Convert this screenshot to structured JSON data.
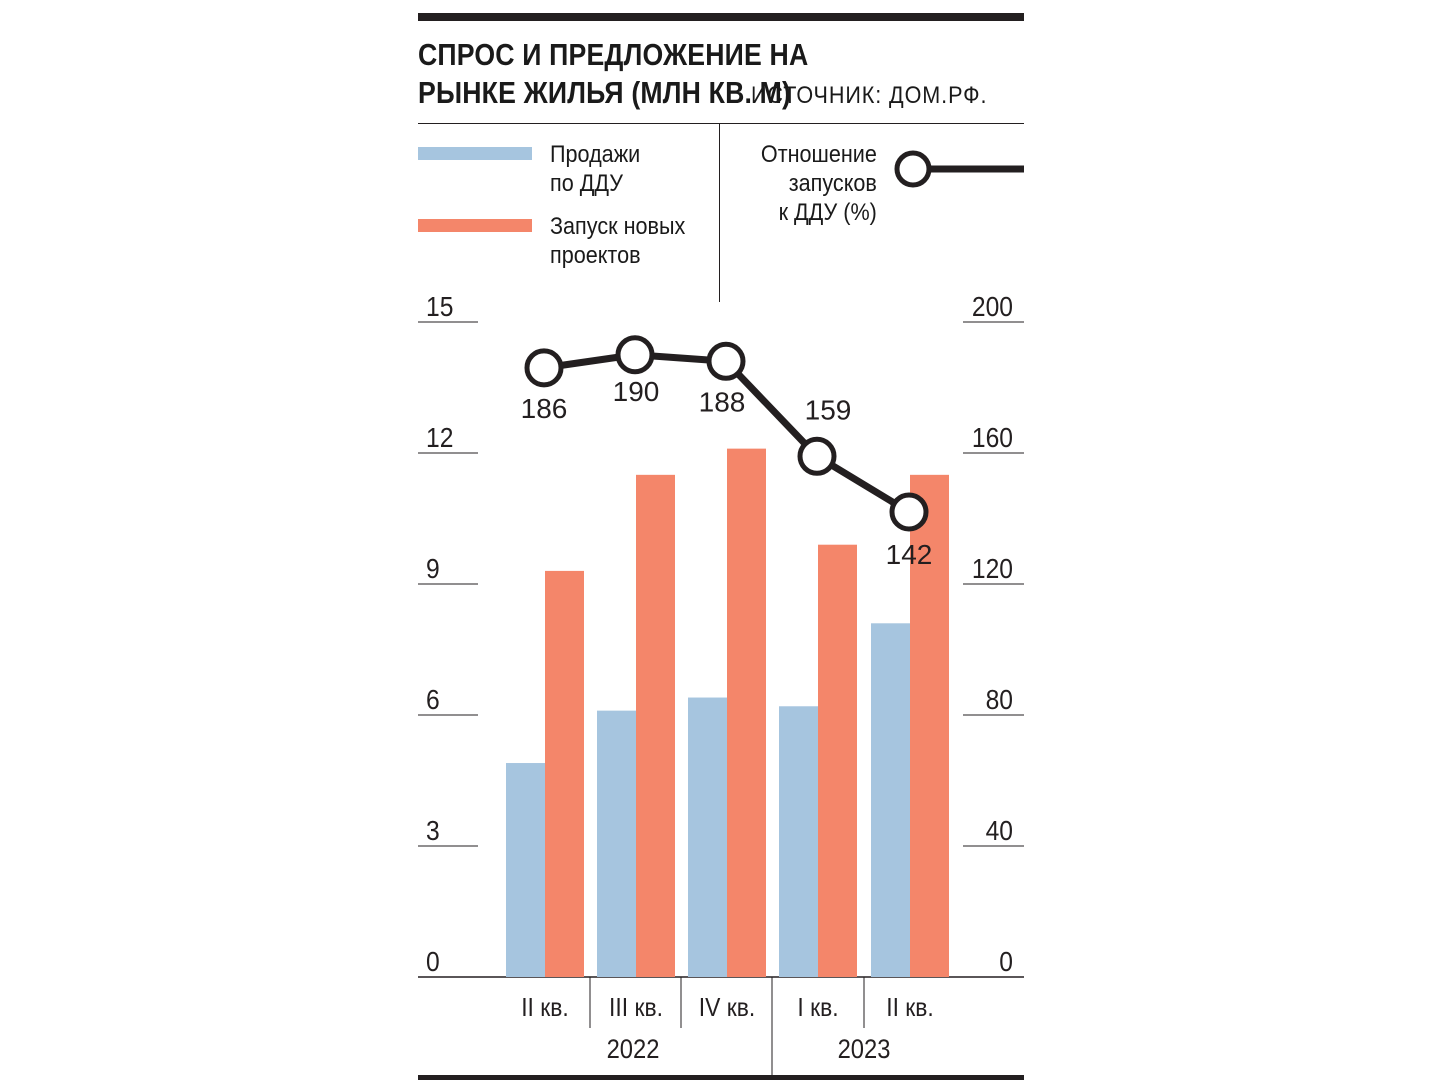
{
  "title": "СПРОС И ПРЕДЛОЖЕНИЕ НА РЫНКЕ ЖИЛЬЯ (МЛН КВ. М)",
  "source": "ИСТОЧНИК: ДОМ.РФ.",
  "legend": {
    "sales": [
      "Продажи",
      "по ДДУ"
    ],
    "launches": [
      "Запуск новых",
      "проектов"
    ],
    "ratio": [
      "Отношение",
      "запусков",
      "к ДДУ (%)"
    ]
  },
  "colors": {
    "sales": "#a6c5df",
    "launches": "#f4866a",
    "line": "#231f20",
    "grid": "#231f20"
  },
  "chart_data": {
    "type": "bar",
    "categories": [
      "II кв.",
      "III кв.",
      "IV кв.",
      "I кв.",
      "II кв."
    ],
    "year_groups": [
      {
        "label": "2022",
        "count": 3
      },
      {
        "label": "2023",
        "count": 2
      }
    ],
    "series": [
      {
        "name": "Продажи по ДДУ",
        "values": [
          4.9,
          6.1,
          6.4,
          6.2,
          8.1
        ],
        "axis": "left"
      },
      {
        "name": "Запуск новых проектов",
        "values": [
          9.3,
          11.5,
          12.1,
          9.9,
          11.5
        ],
        "axis": "left"
      },
      {
        "name": "Отношение запусков к ДДУ (%)",
        "type": "line",
        "values": [
          186,
          190,
          188,
          159,
          142
        ],
        "axis": "right"
      }
    ],
    "y_left": {
      "ticks": [
        "15",
        "12",
        "9",
        "6",
        "3",
        "0"
      ],
      "lim": [
        0,
        15
      ]
    },
    "y_right": {
      "ticks": [
        "200",
        "160",
        "120",
        "80",
        "40",
        "0"
      ],
      "lim": [
        0,
        200
      ]
    }
  }
}
